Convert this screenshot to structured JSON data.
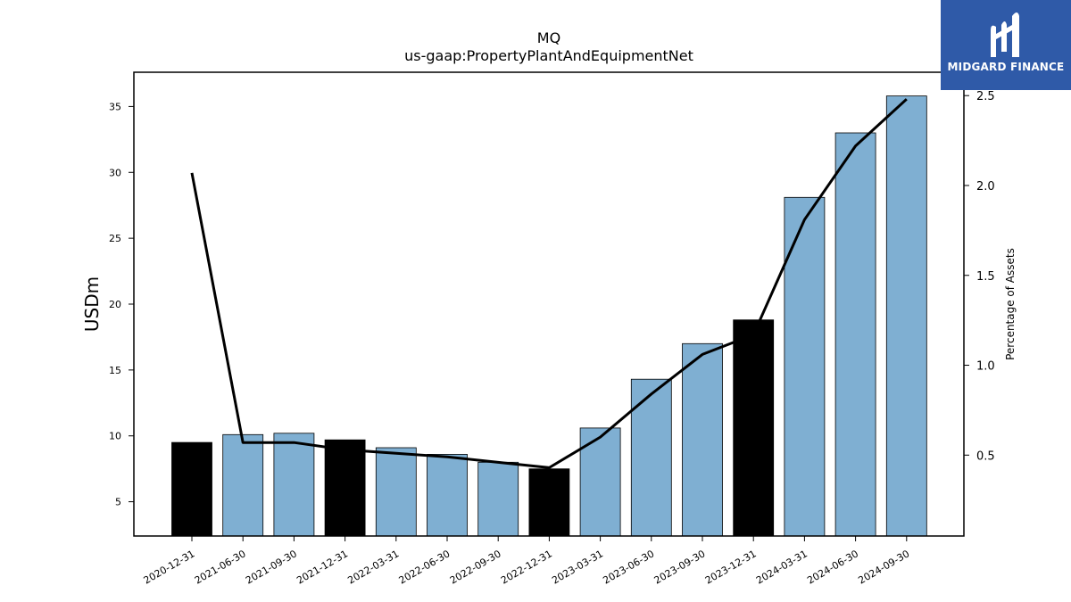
{
  "chart_data": {
    "type": "bar",
    "title": "MQ",
    "subtitle": "us-gaap:PropertyPlantAndEquipmentNet",
    "ylabel": "USDm",
    "y2label": "Percentage of Assets",
    "ylim": [
      2.4,
      37.6
    ],
    "y2lim": [
      0.05,
      2.63
    ],
    "yticks": [
      5,
      10,
      15,
      20,
      25,
      30,
      35
    ],
    "y2ticks": [
      0.5,
      1.0,
      1.5,
      2.0,
      2.5
    ],
    "y2ticklabels": [
      "0.5",
      "1.0",
      "1.5",
      "2.0",
      "2.5"
    ],
    "categories": [
      "2020-12-31",
      "2021-06-30",
      "2021-09-30",
      "2021-12-31",
      "2022-03-31",
      "2022-06-30",
      "2022-09-30",
      "2022-12-31",
      "2023-03-31",
      "2023-06-30",
      "2023-09-30",
      "2023-12-31",
      "2024-03-31",
      "2024-06-30",
      "2024-09-30"
    ],
    "values": [
      9.5,
      10.1,
      10.2,
      9.7,
      9.1,
      8.6,
      8.0,
      7.5,
      10.6,
      14.3,
      17.0,
      18.8,
      28.1,
      33.0,
      35.8
    ],
    "highlight": [
      true,
      false,
      false,
      true,
      false,
      false,
      false,
      true,
      false,
      false,
      false,
      true,
      false,
      false,
      false
    ],
    "line_values": [
      2.07,
      0.57,
      0.57,
      0.53,
      0.51,
      0.49,
      0.46,
      0.43,
      0.6,
      0.84,
      1.06,
      1.17,
      1.81,
      2.22,
      2.48
    ],
    "bar_color": "#7fafd2",
    "highlight_color": "#000000",
    "line_color": "#000000"
  },
  "logo": {
    "text": "MIDGARD FINANCE",
    "color": "#2f5aa8"
  }
}
